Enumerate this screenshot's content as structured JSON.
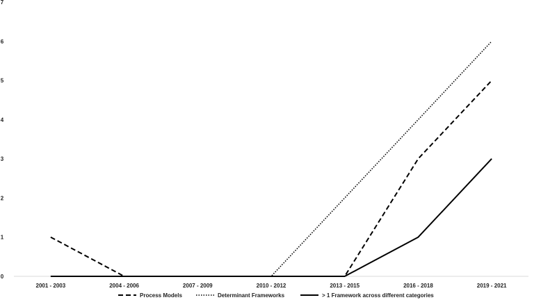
{
  "chart_data": {
    "type": "line",
    "title": "",
    "xlabel": "",
    "ylabel": "",
    "categories": [
      "2001 - 2003",
      "2004 - 2006",
      "2007 - 2009",
      "2010 - 2012",
      "2013 - 2015",
      "2016 - 2018",
      "2019 - 2021"
    ],
    "ylim": [
      0,
      7
    ],
    "yticks": [
      "0",
      "1",
      "2",
      "3",
      "4",
      "5",
      "6",
      "7"
    ],
    "grid": false,
    "legend_position": "bottom",
    "series": [
      {
        "name": "Process Models",
        "values": [
          1,
          0,
          0,
          0,
          0,
          3,
          5
        ],
        "dash": "dashed",
        "color": "#000000"
      },
      {
        "name": "Determinant Frameworks",
        "values": [
          0,
          0,
          0,
          0,
          2,
          4,
          6
        ],
        "dash": "dotted",
        "color": "#000000"
      },
      {
        "name": "> 1 Framework across different categories",
        "values": [
          0,
          0,
          0,
          0,
          0,
          1,
          3
        ],
        "dash": "solid",
        "color": "#000000"
      }
    ]
  }
}
